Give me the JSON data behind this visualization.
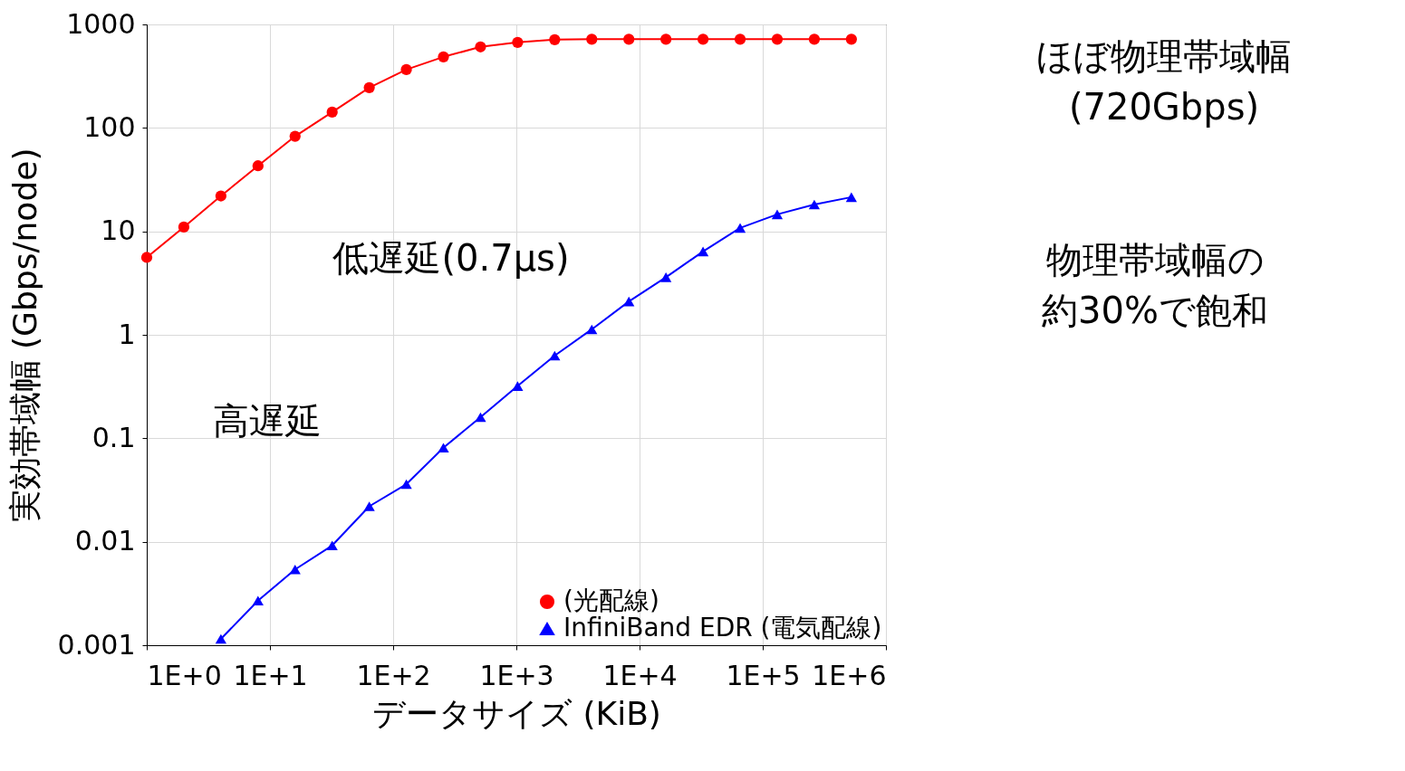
{
  "chart_data": {
    "type": "line",
    "xlabel": "データサイズ (KiB)",
    "ylabel": "実効帯域幅 (Gbps/node)",
    "log": "xy",
    "grid": true,
    "legend": "bottom right",
    "xlim": [
      1,
      1000000
    ],
    "xticks": [
      {
        "value": 1,
        "label": "1E+0"
      },
      {
        "value": 10,
        "label": "1E+1"
      },
      {
        "value": 100,
        "label": "1E+2"
      },
      {
        "value": 1000,
        "label": "1E+3"
      },
      {
        "value": 10000,
        "label": "1E+4"
      },
      {
        "value": 100000,
        "label": "1E+5"
      },
      {
        "value": 1000000,
        "label": "1E+6"
      }
    ],
    "ylim": [
      0.001,
      1000
    ],
    "yticks": [
      0.001,
      0.01,
      0.1,
      1,
      10,
      100,
      1000
    ],
    "series": [
      {
        "name": "(光配線)",
        "color": "#ff0000",
        "marker": "circle",
        "x": [
          1,
          2,
          4,
          8,
          16,
          32,
          64,
          128,
          256,
          512,
          1024,
          2048,
          4096,
          8192,
          16384,
          32768,
          65536,
          131072,
          262144,
          524288
        ],
        "values": [
          5.6,
          11,
          22,
          43,
          83,
          142,
          245,
          366,
          486,
          607,
          671,
          713,
          720,
          720,
          720,
          720,
          720,
          720,
          720,
          720
        ]
      },
      {
        "name": "InfiniBand EDR (電気配線)",
        "color": "#0000ff",
        "marker": "triangle",
        "x": [
          4,
          8,
          16,
          32,
          64,
          128,
          256,
          512,
          1024,
          2048,
          4096,
          8192,
          16384,
          32768,
          65536,
          131072,
          262144,
          524288
        ],
        "values": [
          0.00115,
          0.0027,
          0.0054,
          0.0092,
          0.022,
          0.036,
          0.081,
          0.16,
          0.32,
          0.63,
          1.13,
          2.1,
          3.6,
          6.4,
          10.8,
          14.6,
          18.2,
          21.4
        ]
      }
    ],
    "annotations": [
      "ほぼ物理帯域幅(720Gbps)",
      "低遅延(0.7μs)",
      "物理帯域幅の約30%で飽和",
      "高遅延"
    ]
  }
}
